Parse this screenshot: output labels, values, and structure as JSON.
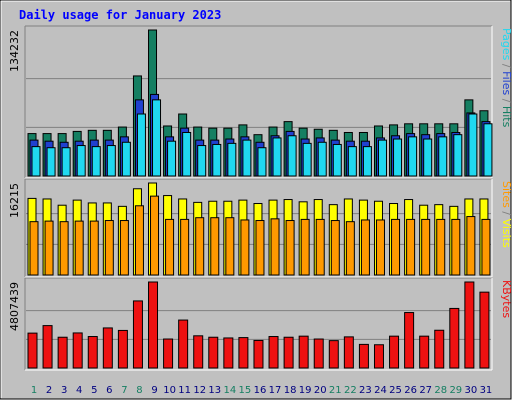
{
  "colors": {
    "frame_bg": "#c0c0c0",
    "plot_bg": "#c0c0c0",
    "page_bg": "#ffffff",
    "hits": "#157f62",
    "files": "#2040d0",
    "pages": "#20d8f0",
    "visits": "#ffff00",
    "sites": "#ff9900",
    "kbytes": "#ee1111",
    "title": "#0000ff",
    "weekday": "#000080",
    "weekend": "#157f62",
    "grid": "#808080"
  },
  "chart_data": {
    "type": "bar",
    "title": "Daily usage for January 2023",
    "categories": [
      "1",
      "2",
      "3",
      "4",
      "5",
      "6",
      "7",
      "8",
      "9",
      "10",
      "11",
      "12",
      "13",
      "14",
      "15",
      "16",
      "17",
      "18",
      "19",
      "20",
      "21",
      "22",
      "23",
      "24",
      "25",
      "26",
      "27",
      "28",
      "29",
      "30",
      "31"
    ],
    "weekend_days": [
      "1",
      "7",
      "8",
      "14",
      "15",
      "21",
      "22",
      "28",
      "29"
    ],
    "panels": [
      {
        "name": "pages-files-hits",
        "ylim": [
          0,
          134232
        ],
        "ymax_label": "134232",
        "grid": true,
        "legend": [
          {
            "text": "Pages",
            "color": "#20d8f0"
          },
          {
            "text": " / ",
            "color": "#808080"
          },
          {
            "text": "Files",
            "color": "#2040d0"
          },
          {
            "text": " / ",
            "color": "#808080"
          },
          {
            "text": "Hits",
            "color": "#157f62"
          }
        ],
        "series": [
          {
            "name": "Hits",
            "values": [
              39000,
              39000,
              39000,
              41000,
              42000,
              42000,
              45000,
              92000,
              134232,
              46000,
              57000,
              45000,
              44000,
              44000,
              47000,
              38000,
              45000,
              50000,
              44000,
              43000,
              42000,
              40000,
              40000,
              46000,
              47000,
              48000,
              48000,
              48000,
              48000,
              70000,
              60000
            ]
          },
          {
            "name": "Files",
            "values": [
              33000,
              32000,
              31000,
              32000,
              33000,
              33000,
              36000,
              70000,
              75000,
              36000,
              44000,
              33000,
              33000,
              34000,
              36000,
              31000,
              37000,
              41000,
              34000,
              35000,
              33000,
              32000,
              32000,
              35000,
              37000,
              39000,
              38000,
              39000,
              40000,
              58000,
              50000
            ]
          },
          {
            "name": "Pages",
            "values": [
              27000,
              26000,
              26000,
              28000,
              27000,
              28000,
              31000,
              57000,
              70000,
              32000,
              40000,
              28000,
              29000,
              30000,
              33000,
              26000,
              35000,
              37000,
              30000,
              31000,
              29000,
              27000,
              27000,
              33000,
              34000,
              36000,
              34000,
              36000,
              38000,
              57000,
              48000
            ]
          }
        ]
      },
      {
        "name": "sites-visits",
        "ylim": [
          0,
          16215
        ],
        "ymax_label": "16215",
        "grid": true,
        "legend": [
          {
            "text": "Sites",
            "color": "#ff9900"
          },
          {
            "text": " / ",
            "color": "#808080"
          },
          {
            "text": "Visits",
            "color": "#ffff00"
          }
        ],
        "series": [
          {
            "name": "Visits",
            "values": [
              13500,
              13400,
              12300,
              13200,
              12700,
              12700,
              12100,
              15200,
              16215,
              14000,
              13400,
              12800,
              13000,
              13000,
              13200,
              12600,
              13200,
              13300,
              12900,
              13300,
              12400,
              13400,
              13200,
              13000,
              12600,
              13300,
              12300,
              12400,
              12100,
              13400,
              13400
            ]
          },
          {
            "name": "Sites",
            "values": [
              9400,
              9500,
              9400,
              9500,
              9500,
              9600,
              9600,
              12200,
              13900,
              9800,
              9800,
              10100,
              10100,
              10100,
              9700,
              9600,
              9900,
              9600,
              9800,
              9800,
              9600,
              9400,
              9700,
              9700,
              9800,
              9800,
              9800,
              9800,
              9800,
              10300,
              9800
            ]
          }
        ]
      },
      {
        "name": "kbytes",
        "ylim": [
          0,
          4807439
        ],
        "ymax_label": "4807439",
        "grid": true,
        "legend": [
          {
            "text": "KBytes",
            "color": "#ee1111"
          }
        ],
        "series": [
          {
            "name": "KBytes",
            "values": [
              1950000,
              2370000,
              1720000,
              1960000,
              1760000,
              2240000,
              2100000,
              3750000,
              4807439,
              1620000,
              2680000,
              1800000,
              1720000,
              1680000,
              1700000,
              1540000,
              1760000,
              1720000,
              1780000,
              1620000,
              1530000,
              1740000,
              1320000,
              1300000,
              1780000,
              3100000,
              1780000,
              2110000,
              3330000,
              4807439,
              4240000
            ]
          }
        ]
      }
    ]
  }
}
